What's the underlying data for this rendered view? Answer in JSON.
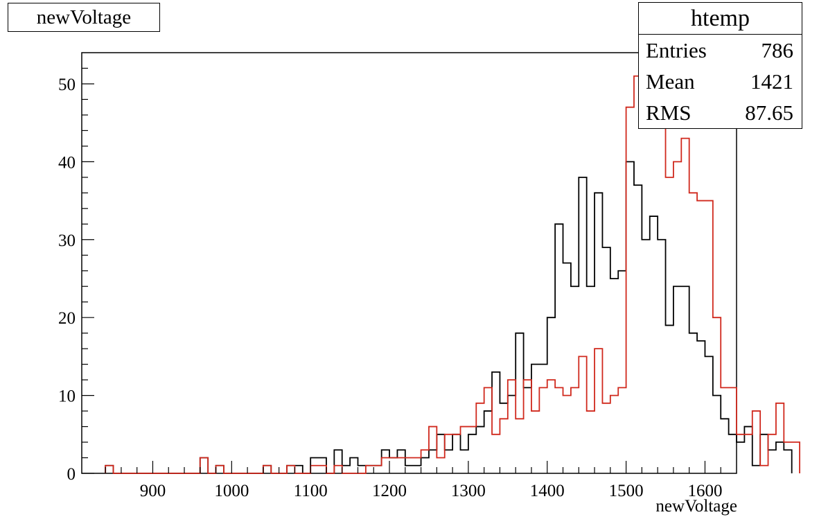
{
  "title_box": {
    "text": "newVoltage"
  },
  "stats": {
    "name": "htemp",
    "rows": [
      {
        "label": "Entries",
        "value": "786"
      },
      {
        "label": "Mean",
        "value": "1421"
      },
      {
        "label": "RMS",
        "value": "87.65"
      }
    ]
  },
  "chart_data": {
    "type": "line",
    "style": "step-histogram",
    "xlabel": "newVoltage",
    "ylabel": "",
    "xlim": [
      810,
      1640
    ],
    "ylim": [
      0,
      54
    ],
    "x_ticks": [
      900,
      1000,
      1100,
      1200,
      1300,
      1400,
      1500,
      1600
    ],
    "y_ticks": [
      0,
      10,
      20,
      30,
      40,
      50
    ],
    "bin_start": 840,
    "bin_width": 10,
    "series": [
      {
        "color": "#000000",
        "values": [
          1,
          0,
          0,
          0,
          0,
          0,
          0,
          0,
          0,
          0,
          0,
          0,
          2,
          0,
          1,
          0,
          0,
          0,
          0,
          0,
          1,
          0,
          0,
          1,
          1,
          0,
          2,
          2,
          0,
          3,
          1,
          2,
          1,
          1,
          1,
          3,
          2,
          3,
          1,
          1,
          2,
          3,
          5,
          3,
          5,
          3,
          5,
          6,
          8,
          13,
          9,
          10,
          18,
          11,
          14,
          14,
          20,
          32,
          27,
          24,
          38,
          24,
          36,
          29,
          25,
          26,
          40,
          37,
          30,
          33,
          30,
          19,
          24,
          24,
          18,
          17,
          15,
          10,
          7,
          5,
          4,
          6,
          1,
          5,
          3,
          4,
          3
        ]
      },
      {
        "color": "#d0281c",
        "values": [
          1,
          0,
          0,
          0,
          0,
          0,
          0,
          0,
          0,
          0,
          0,
          0,
          2,
          0,
          1,
          0,
          0,
          0,
          0,
          0,
          1,
          0,
          0,
          1,
          0,
          0,
          1,
          1,
          0,
          1,
          0,
          0,
          0,
          1,
          1,
          2,
          2,
          2,
          2,
          2,
          3,
          6,
          2,
          5,
          5,
          6,
          6,
          9,
          11,
          5,
          7,
          12,
          7,
          12,
          8,
          11,
          12,
          11,
          10,
          11,
          15,
          8,
          16,
          9,
          10,
          11,
          47,
          51,
          47,
          49,
          51,
          38,
          40,
          43,
          36,
          35,
          35,
          20,
          11,
          11,
          5,
          5,
          8,
          1,
          5,
          9,
          4,
          4
        ]
      }
    ]
  }
}
